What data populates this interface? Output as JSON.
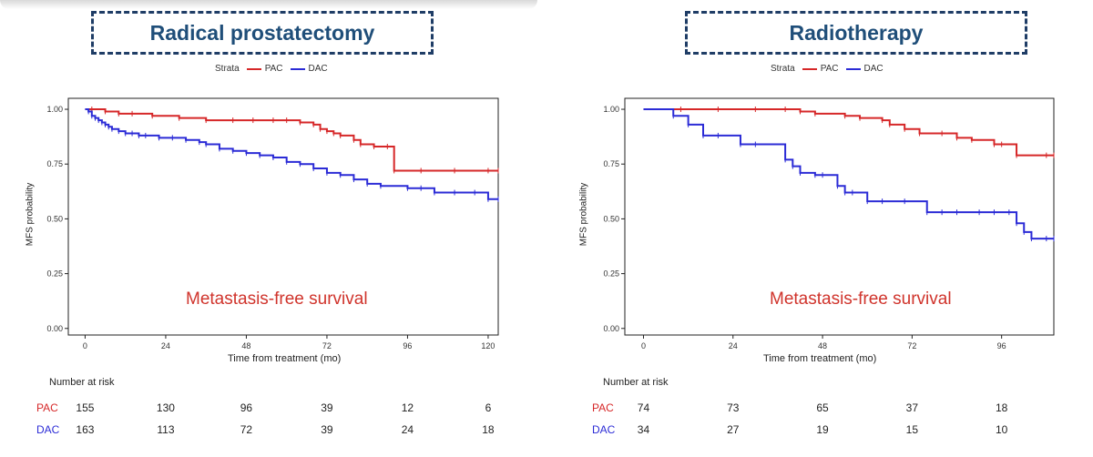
{
  "panels": [
    {
      "title": "Radical prostatectomy",
      "legend": {
        "label": "Strata",
        "entries": [
          "PAC",
          "DAC"
        ]
      },
      "annotation": "Metastasis-free survival",
      "risk_table": {
        "title": "Number at risk",
        "rows": [
          {
            "label": "PAC",
            "values": [
              "155",
              "130",
              "96",
              "39",
              "12",
              "6"
            ]
          },
          {
            "label": "DAC",
            "values": [
              "163",
              "113",
              "72",
              "39",
              "24",
              "18"
            ]
          }
        ]
      }
    },
    {
      "title": "Radiotherapy",
      "legend": {
        "label": "Strata",
        "entries": [
          "PAC",
          "DAC"
        ]
      },
      "annotation": "Metastasis-free survival",
      "risk_table": {
        "title": "Number at risk",
        "rows": [
          {
            "label": "PAC",
            "values": [
              "74",
              "73",
              "65",
              "37",
              "18"
            ]
          },
          {
            "label": "DAC",
            "values": [
              "34",
              "27",
              "19",
              "15",
              "10"
            ]
          }
        ]
      }
    }
  ],
  "colors": {
    "PAC": "#d62728",
    "DAC": "#2b2bd6",
    "title_text": "#1f4e79",
    "title_border": "#1f3d66"
  },
  "chart_data": [
    {
      "type": "line",
      "step": true,
      "xlabel": "Time from treatment (mo)",
      "ylabel": "MFS probability",
      "xticks": [
        0,
        24,
        48,
        72,
        96,
        120
      ],
      "xtick_labels": [
        "0",
        "24",
        "48",
        "72",
        "96",
        "120"
      ],
      "yticks": [
        0,
        0.25,
        0.5,
        0.75,
        1.0
      ],
      "ytick_labels": [
        "0.00",
        "0.25",
        "0.50",
        "0.75",
        "1.00"
      ],
      "xlim": [
        -5,
        123
      ],
      "ylim": [
        -0.03,
        1.05
      ],
      "series": [
        {
          "name": "PAC",
          "x": [
            0,
            2,
            6,
            10,
            14,
            20,
            28,
            36,
            44,
            50,
            56,
            60,
            64,
            68,
            70,
            72,
            74,
            76,
            80,
            82,
            86,
            90,
            92,
            100,
            110,
            120,
            123
          ],
          "y": [
            1.0,
            1.0,
            0.99,
            0.98,
            0.98,
            0.97,
            0.96,
            0.95,
            0.95,
            0.95,
            0.95,
            0.95,
            0.94,
            0.93,
            0.91,
            0.9,
            0.89,
            0.88,
            0.86,
            0.84,
            0.83,
            0.83,
            0.72,
            0.72,
            0.72,
            0.72,
            0.72
          ]
        },
        {
          "name": "DAC",
          "x": [
            0,
            1,
            2,
            3,
            4,
            5,
            6,
            7,
            8,
            10,
            12,
            14,
            16,
            18,
            22,
            26,
            30,
            34,
            36,
            40,
            44,
            48,
            52,
            56,
            60,
            64,
            68,
            72,
            76,
            80,
            84,
            88,
            96,
            100,
            104,
            110,
            116,
            120,
            123
          ],
          "y": [
            1.0,
            0.99,
            0.97,
            0.96,
            0.95,
            0.94,
            0.93,
            0.92,
            0.91,
            0.9,
            0.89,
            0.89,
            0.88,
            0.88,
            0.87,
            0.87,
            0.86,
            0.85,
            0.84,
            0.82,
            0.81,
            0.8,
            0.79,
            0.78,
            0.76,
            0.75,
            0.73,
            0.71,
            0.7,
            0.68,
            0.66,
            0.65,
            0.64,
            0.64,
            0.62,
            0.62,
            0.62,
            0.59,
            0.59
          ]
        }
      ]
    },
    {
      "type": "line",
      "step": true,
      "xlabel": "Time from treatment (mo)",
      "ylabel": "MFS probability",
      "xticks": [
        0,
        24,
        48,
        72,
        96
      ],
      "xtick_labels": [
        "0",
        "24",
        "48",
        "72",
        "96"
      ],
      "yticks": [
        0,
        0.25,
        0.5,
        0.75,
        1.0
      ],
      "ytick_labels": [
        "0.00",
        "0.25",
        "0.50",
        "0.75",
        "1.00"
      ],
      "xlim": [
        -5,
        110
      ],
      "ylim": [
        -0.03,
        1.05
      ],
      "series": [
        {
          "name": "PAC",
          "x": [
            0,
            10,
            20,
            30,
            38,
            42,
            46,
            54,
            58,
            64,
            66,
            70,
            74,
            80,
            84,
            88,
            94,
            96,
            100,
            108,
            110
          ],
          "y": [
            1.0,
            1.0,
            1.0,
            1.0,
            1.0,
            0.99,
            0.98,
            0.97,
            0.96,
            0.95,
            0.93,
            0.91,
            0.89,
            0.89,
            0.87,
            0.86,
            0.84,
            0.84,
            0.79,
            0.79,
            0.79
          ]
        },
        {
          "name": "DAC",
          "x": [
            0,
            8,
            12,
            16,
            20,
            26,
            30,
            38,
            40,
            42,
            46,
            48,
            52,
            54,
            56,
            60,
            64,
            70,
            76,
            80,
            84,
            90,
            94,
            98,
            100,
            102,
            104,
            108,
            110
          ],
          "y": [
            1.0,
            0.97,
            0.93,
            0.88,
            0.88,
            0.84,
            0.84,
            0.77,
            0.74,
            0.71,
            0.7,
            0.7,
            0.65,
            0.62,
            0.62,
            0.58,
            0.58,
            0.58,
            0.53,
            0.53,
            0.53,
            0.53,
            0.53,
            0.53,
            0.48,
            0.44,
            0.41,
            0.41,
            0.41
          ]
        }
      ]
    }
  ]
}
